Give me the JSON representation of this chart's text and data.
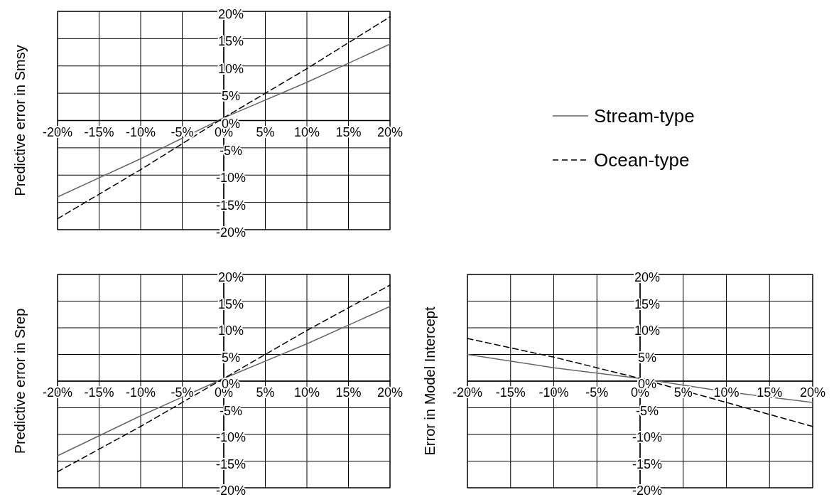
{
  "chart_data": [
    {
      "type": "line",
      "ylabel": "Predictive error in Smsy",
      "xlim": [
        -20,
        20
      ],
      "ylim": [
        -20,
        20
      ],
      "xticks": [
        {
          "value": -20,
          "label": "-20%"
        },
        {
          "value": -15,
          "label": "-15%"
        },
        {
          "value": -10,
          "label": "-10%"
        },
        {
          "value": -5,
          "label": "-5%"
        },
        {
          "value": 0,
          "label": "0%"
        },
        {
          "value": 5,
          "label": "5%"
        },
        {
          "value": 10,
          "label": "10%"
        },
        {
          "value": 15,
          "label": "15%"
        },
        {
          "value": 20,
          "label": "20%"
        }
      ],
      "yticks": [
        {
          "value": -20,
          "label": "-20%"
        },
        {
          "value": -15,
          "label": "-15%"
        },
        {
          "value": -10,
          "label": "-10%"
        },
        {
          "value": -5,
          "label": "-5%"
        },
        {
          "value": 0,
          "label": "0%"
        },
        {
          "value": 5,
          "label": "5%"
        },
        {
          "value": 10,
          "label": "10%"
        },
        {
          "value": 15,
          "label": "15%"
        },
        {
          "value": 20,
          "label": "20%"
        }
      ],
      "grid": true,
      "legend": "right",
      "marker": "none",
      "x": [
        -20,
        -10,
        0,
        10,
        20
      ],
      "series": [
        {
          "name": "Stream-type",
          "color": "#666666",
          "line_style": "solid",
          "values": [
            -14,
            -7,
            0.5,
            7,
            14
          ]
        },
        {
          "name": "Ocean-type",
          "color": "#000000",
          "line_style": "dashed",
          "values": [
            -18,
            -9,
            0.5,
            9.5,
            19
          ]
        }
      ]
    },
    {
      "type": "line",
      "ylabel": "Predictive error in Srep",
      "xlim": [
        -20,
        20
      ],
      "ylim": [
        -20,
        20
      ],
      "xticks": [
        {
          "value": -20,
          "label": "-20%"
        },
        {
          "value": -15,
          "label": "-15%"
        },
        {
          "value": -10,
          "label": "-10%"
        },
        {
          "value": -5,
          "label": "-5%"
        },
        {
          "value": 0,
          "label": "0%"
        },
        {
          "value": 5,
          "label": "5%"
        },
        {
          "value": 10,
          "label": "10%"
        },
        {
          "value": 15,
          "label": "15%"
        },
        {
          "value": 20,
          "label": "20%"
        }
      ],
      "yticks": [
        {
          "value": -20,
          "label": "-20%"
        },
        {
          "value": -15,
          "label": "-15%"
        },
        {
          "value": -10,
          "label": "-10%"
        },
        {
          "value": -5,
          "label": "-5%"
        },
        {
          "value": 0,
          "label": "0%"
        },
        {
          "value": 5,
          "label": "5%"
        },
        {
          "value": 10,
          "label": "10%"
        },
        {
          "value": 15,
          "label": "15%"
        },
        {
          "value": 20,
          "label": "20%"
        }
      ],
      "grid": true,
      "marker": "none",
      "x": [
        -20,
        -10,
        0,
        10,
        20
      ],
      "series": [
        {
          "color": "#666666",
          "line_style": "solid",
          "values": [
            -14,
            -6.5,
            0.5,
            7,
            14
          ]
        },
        {
          "color": "#000000",
          "line_style": "dashed",
          "values": [
            -17,
            -8.5,
            0.5,
            9.5,
            18
          ]
        }
      ]
    },
    {
      "type": "line",
      "ylabel": "Error in Model Intercept",
      "xlim": [
        -20,
        20
      ],
      "ylim": [
        -20,
        20
      ],
      "xticks": [
        {
          "value": -20,
          "label": "-20%"
        },
        {
          "value": -15,
          "label": "-15%"
        },
        {
          "value": -10,
          "label": "-10%"
        },
        {
          "value": -5,
          "label": "-5%"
        },
        {
          "value": 0,
          "label": "0%"
        },
        {
          "value": 5,
          "label": "5%"
        },
        {
          "value": 10,
          "label": "10%"
        },
        {
          "value": 15,
          "label": "15%"
        },
        {
          "value": 20,
          "label": "20%"
        }
      ],
      "yticks": [
        {
          "value": -20,
          "label": "-20%"
        },
        {
          "value": -15,
          "label": "-15%"
        },
        {
          "value": -10,
          "label": "-10%"
        },
        {
          "value": -5,
          "label": "-5%"
        },
        {
          "value": 0,
          "label": "0%"
        },
        {
          "value": 5,
          "label": "5%"
        },
        {
          "value": 10,
          "label": "10%"
        },
        {
          "value": 15,
          "label": "15%"
        },
        {
          "value": 20,
          "label": "20%"
        }
      ],
      "grid": true,
      "marker": "none",
      "x": [
        -20,
        -10,
        0,
        10,
        20
      ],
      "series": [
        {
          "color": "#666666",
          "line_style": "solid",
          "values": [
            5,
            2.5,
            0.5,
            -2,
            -4
          ]
        },
        {
          "color": "#000000",
          "line_style": "dashed",
          "values": [
            8,
            4.5,
            0.5,
            -4,
            -8.5
          ]
        }
      ]
    }
  ]
}
